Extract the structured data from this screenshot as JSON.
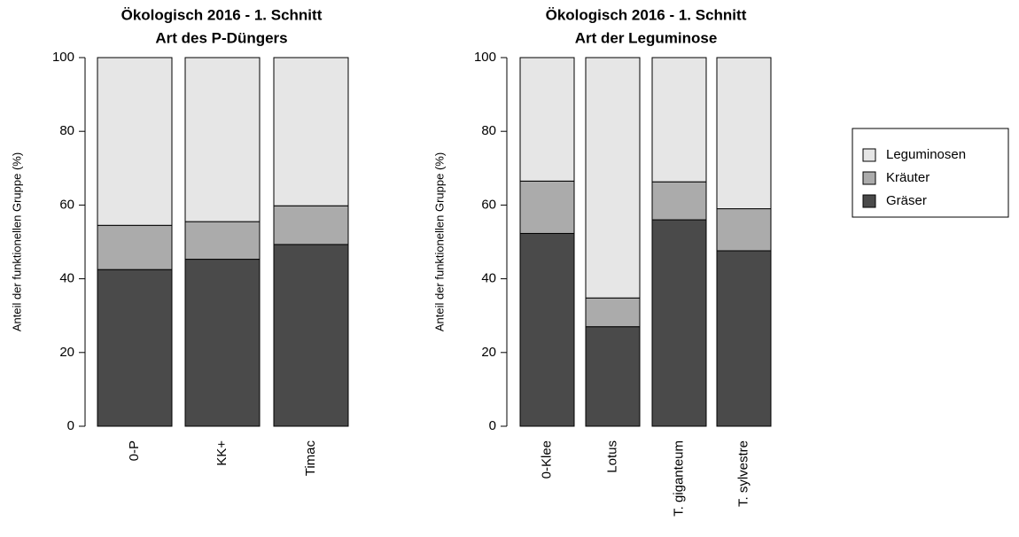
{
  "chart_data": [
    {
      "type": "stacked_bar",
      "title": "Ökologisch 2016 - 1. Schnitt",
      "subtitle": "Art des P-Düngers",
      "y_label": "Anteil der funktionellen Gruppe (%)",
      "categories": [
        "0-P",
        "KK+",
        "Timac"
      ],
      "series": [
        {
          "name": "Gräser",
          "color": "#4a4a4a",
          "values": [
            42.5,
            45.3,
            49.3
          ]
        },
        {
          "name": "Kräuter",
          "color": "#ababab",
          "values": [
            12,
            10.2,
            10.5
          ]
        },
        {
          "name": "Leguminosen",
          "color": "#e6e6e6",
          "values": [
            45.5,
            44.5,
            40.2
          ]
        }
      ],
      "ylim": [
        0,
        100
      ],
      "yticks": [
        0,
        20,
        40,
        60,
        80,
        100
      ]
    },
    {
      "type": "stacked_bar",
      "title": "Ökologisch 2016 - 1. Schnitt",
      "subtitle": "Art der Leguminose",
      "y_label": "Anteil der funktionellen Gruppe (%)",
      "categories": [
        "0-Klee",
        "Lotus",
        "T. giganteum",
        "T. sylvestre"
      ],
      "series": [
        {
          "name": "Gräser",
          "color": "#4a4a4a",
          "values": [
            52.3,
            27,
            56,
            47.6
          ]
        },
        {
          "name": "Kräuter",
          "color": "#ababab",
          "values": [
            14.2,
            7.8,
            10.3,
            11.4
          ]
        },
        {
          "name": "Leguminosen",
          "color": "#e6e6e6",
          "values": [
            33.5,
            65.2,
            33.7,
            41
          ]
        }
      ],
      "ylim": [
        0,
        100
      ],
      "yticks": [
        0,
        20,
        40,
        60,
        80,
        100
      ]
    }
  ]
}
